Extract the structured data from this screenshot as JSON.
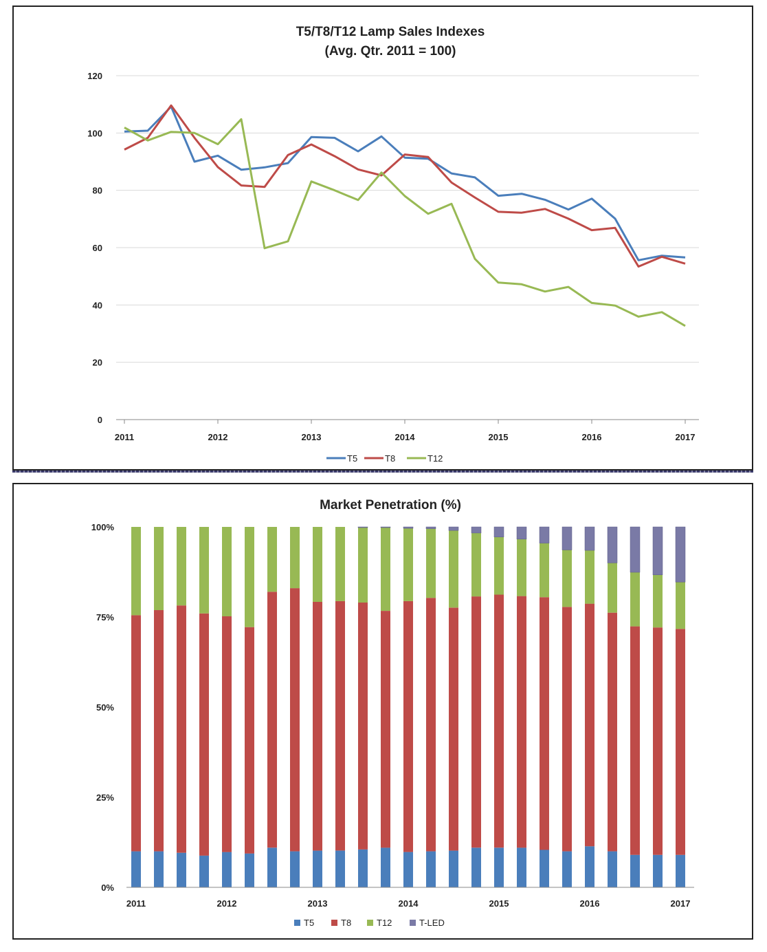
{
  "chart_data": [
    {
      "type": "line",
      "title": "T5/T8/T12 Lamp Sales Indexes",
      "subtitle": "(Avg. Qtr. 2011 = 100)",
      "x_tick_labels": [
        "2011",
        "2012",
        "2013",
        "2014",
        "2015",
        "2016",
        "2017"
      ],
      "y_tick_labels": [
        "0",
        "20",
        "40",
        "60",
        "80",
        "100",
        "120"
      ],
      "ylim": [
        0,
        120
      ],
      "x_range": [
        2011,
        2017
      ],
      "x": [
        2011.0,
        2011.25,
        2011.5,
        2011.75,
        2012.0,
        2012.25,
        2012.5,
        2012.75,
        2013.0,
        2013.25,
        2013.5,
        2013.75,
        2014.0,
        2014.25,
        2014.5,
        2014.75,
        2015.0,
        2015.25,
        2015.5,
        2015.75,
        2016.0,
        2016.25,
        2016.5,
        2016.75,
        2017.0
      ],
      "series": [
        {
          "name": "T5",
          "color": "#4a7ebb",
          "values": [
            100.5,
            100.8,
            109.2,
            90.0,
            92.1,
            87.2,
            88.0,
            89.5,
            98.6,
            98.3,
            93.6,
            98.8,
            91.4,
            91.0,
            85.9,
            84.5,
            78.1,
            78.8,
            76.7,
            73.3,
            77.1,
            70.1,
            55.6,
            57.2,
            56.6
          ]
        },
        {
          "name": "T8",
          "color": "#be4b48",
          "values": [
            94.2,
            98.3,
            109.6,
            98.3,
            88.1,
            81.7,
            81.2,
            92.3,
            96.0,
            91.9,
            87.3,
            85.2,
            92.5,
            91.6,
            82.7,
            77.5,
            72.5,
            72.2,
            73.5,
            70.1,
            66.1,
            66.9,
            53.4,
            56.8,
            54.4
          ]
        },
        {
          "name": "T12",
          "color": "#98b954",
          "values": [
            101.9,
            97.4,
            100.4,
            100.0,
            96.1,
            104.8,
            59.8,
            62.2,
            83.1,
            80.0,
            76.6,
            86.2,
            78.0,
            71.8,
            75.3,
            56.1,
            47.8,
            47.2,
            44.7,
            46.3,
            40.7,
            39.8,
            35.9,
            37.5,
            32.7
          ]
        }
      ],
      "legend_position": "bottom",
      "grid": "horizontal"
    },
    {
      "type": "bar",
      "stacked": true,
      "title": "Market Penetration (%)",
      "x_tick_labels": [
        "2011",
        "2012",
        "2013",
        "2014",
        "2015",
        "2016",
        "2017"
      ],
      "y_tick_labels": [
        "0%",
        "25%",
        "50%",
        "75%",
        "100%"
      ],
      "ylim": [
        0,
        100
      ],
      "x_range": [
        2011,
        2017
      ],
      "x": [
        2011.0,
        2011.25,
        2011.5,
        2011.75,
        2012.0,
        2012.25,
        2012.5,
        2012.75,
        2013.0,
        2013.25,
        2013.5,
        2013.75,
        2014.0,
        2014.25,
        2014.5,
        2014.75,
        2015.0,
        2015.25,
        2015.5,
        2015.75,
        2016.0,
        2016.25,
        2016.5,
        2016.75,
        2017.0
      ],
      "series": [
        {
          "name": "T5",
          "color": "#4a7ebb",
          "values": [
            10,
            10,
            9.6,
            8.8,
            9.8,
            9.4,
            11,
            10,
            10.2,
            10.2,
            10.5,
            11,
            9.8,
            10,
            10.2,
            11,
            11,
            11,
            10.4,
            10,
            11.4,
            10,
            9,
            9,
            9
          ]
        },
        {
          "name": "T8",
          "color": "#be4b48",
          "values": [
            65.5,
            66.9,
            68.6,
            67.2,
            65.4,
            62.8,
            71.0,
            73.0,
            69.0,
            69.2,
            68.5,
            65.7,
            69.6,
            70.3,
            67.4,
            69.7,
            70.2,
            69.8,
            70.1,
            67.8,
            67.3,
            66.2,
            63.4,
            63.1,
            62.7
          ]
        },
        {
          "name": "T12",
          "color": "#98b954",
          "values": [
            24.5,
            23.1,
            21.8,
            24.0,
            24.8,
            27.8,
            18.0,
            17.0,
            20.8,
            20.6,
            20.8,
            23.1,
            20.2,
            19.2,
            21.4,
            17.6,
            16.0,
            15.8,
            15.0,
            15.8,
            14.8,
            13.8,
            15.0,
            14.6,
            13.0
          ]
        },
        {
          "name": "T-LED",
          "color": "#7a7aa6",
          "values": [
            0,
            0,
            0,
            0,
            0,
            0,
            0,
            0,
            0,
            0,
            0.2,
            0.2,
            0.4,
            0.5,
            1.0,
            1.7,
            2.8,
            3.4,
            4.5,
            6.4,
            6.5,
            10.0,
            12.6,
            13.3,
            15.3
          ]
        }
      ],
      "legend_position": "bottom",
      "grid": "none"
    }
  ]
}
